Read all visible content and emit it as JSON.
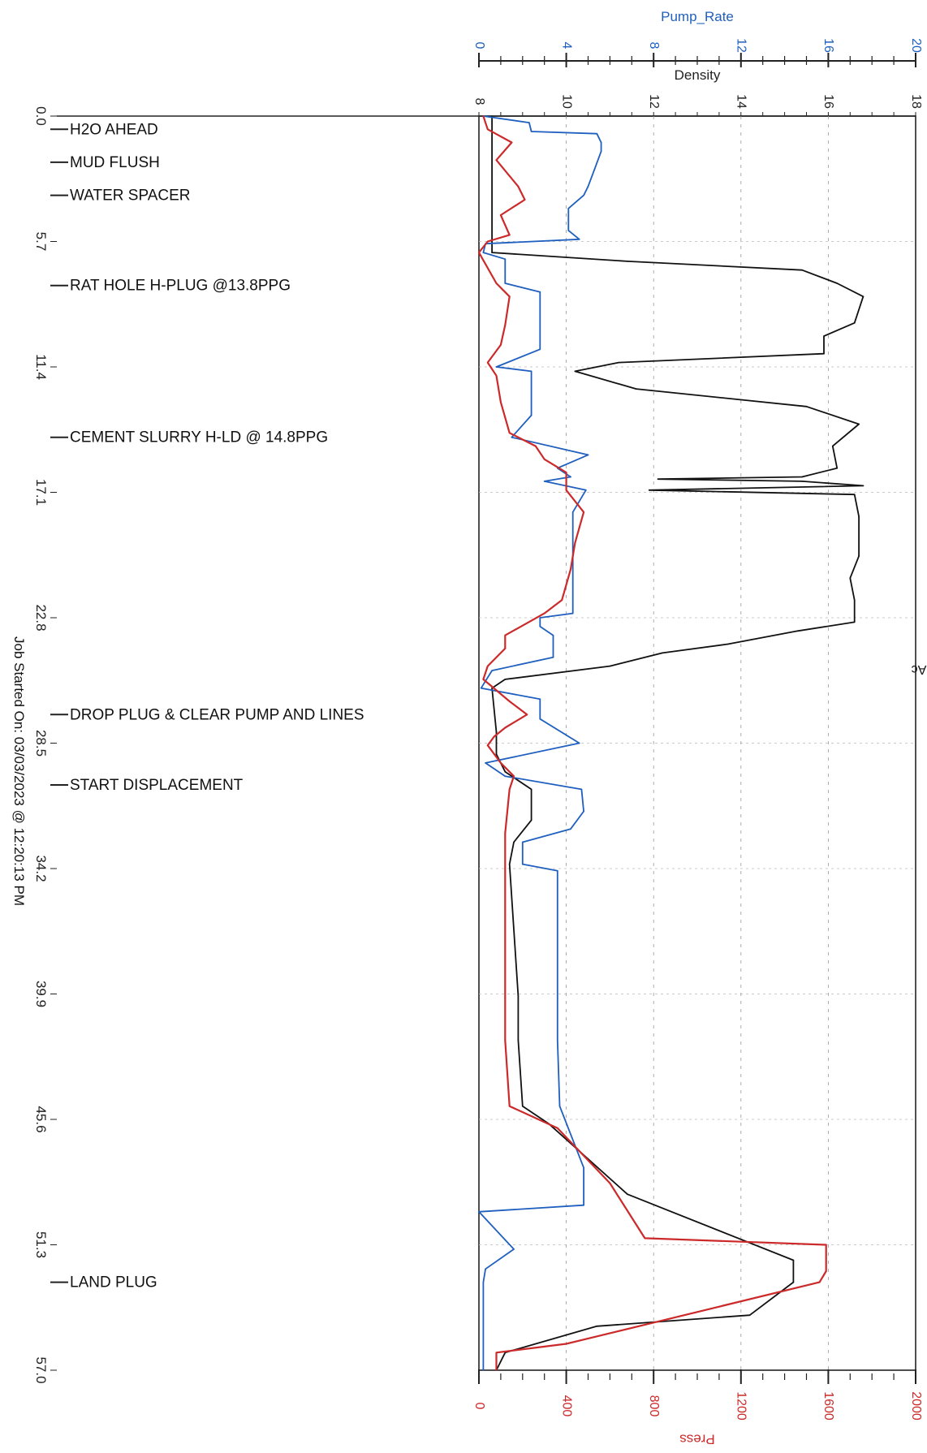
{
  "chart_data": {
    "type": "line",
    "orientation": "rotated-90",
    "x_axis": {
      "label": "",
      "ticks": [
        "0.0",
        "5.7",
        "11.4",
        "17.1",
        "22.8",
        "28.5",
        "34.2",
        "39.9",
        "45.6",
        "51.3",
        "57.0"
      ],
      "range": [
        0,
        57
      ]
    },
    "top_axes": [
      {
        "label": "Pump_Rate",
        "ticks": [
          "0",
          "4",
          "8",
          "12",
          "16",
          "20"
        ],
        "range": [
          0,
          20
        ],
        "color": "#1f5fbf"
      },
      {
        "label": "Density",
        "ticks": [
          "8",
          "10",
          "12",
          "14",
          "16",
          "18"
        ],
        "range": [
          8,
          18
        ],
        "color": "#222222"
      }
    ],
    "bottom_axis": {
      "label": "Press",
      "ticks": [
        "0",
        "400",
        "800",
        "1200",
        "1600",
        "2000"
      ],
      "range": [
        0,
        2000
      ],
      "color": "#cc2a2a"
    },
    "annotations": [
      {
        "time": 0.6,
        "text": "H2O AHEAD"
      },
      {
        "time": 2.1,
        "text": "MUD FLUSH"
      },
      {
        "time": 3.6,
        "text": "WATER SPACER"
      },
      {
        "time": 7.7,
        "text": "RAT HOLE H-PLUG @13.8PPG"
      },
      {
        "time": 14.6,
        "text": "CEMENT SLURRY H-LD @ 14.8PPG"
      },
      {
        "time": 27.2,
        "text": "DROP PLUG & CLEAR PUMP AND LINES"
      },
      {
        "time": 30.4,
        "text": "START DISPLACEMENT"
      },
      {
        "time": 53.0,
        "text": "LAND PLUG"
      }
    ],
    "footer": "Job Started On: 03/03/2023 @ 12:20:13 PM",
    "corner_text": "Ac",
    "series": [
      {
        "name": "Density",
        "color": "#111111",
        "axis": "Density",
        "points": [
          [
            0,
            8.3
          ],
          [
            5.6,
            8.3
          ],
          [
            6.2,
            8.3
          ],
          [
            6.6,
            11.4
          ],
          [
            7.0,
            15.4
          ],
          [
            7.6,
            16.2
          ],
          [
            8.2,
            16.8
          ],
          [
            9.4,
            16.6
          ],
          [
            10.0,
            15.9
          ],
          [
            10.8,
            15.9
          ],
          [
            11.2,
            11.2
          ],
          [
            11.6,
            10.2
          ],
          [
            12.4,
            11.6
          ],
          [
            13.2,
            15.5
          ],
          [
            14.0,
            16.7
          ],
          [
            15.0,
            16.1
          ],
          [
            16.0,
            16.2
          ],
          [
            16.4,
            15.4
          ],
          [
            16.5,
            12.1
          ],
          [
            16.6,
            15.4
          ],
          [
            16.8,
            16.8
          ],
          [
            17.0,
            11.9
          ],
          [
            17.2,
            16.6
          ],
          [
            18.2,
            16.7
          ],
          [
            20.0,
            16.7
          ],
          [
            21.0,
            16.5
          ],
          [
            22.0,
            16.6
          ],
          [
            23.0,
            16.6
          ],
          [
            23.4,
            15.3
          ],
          [
            24.0,
            13.7
          ],
          [
            24.4,
            12.2
          ],
          [
            25.0,
            11.0
          ],
          [
            25.6,
            8.6
          ],
          [
            26.0,
            8.3
          ],
          [
            28.0,
            8.4
          ],
          [
            29.0,
            8.4
          ],
          [
            29.8,
            8.6
          ],
          [
            30.6,
            9.2
          ],
          [
            32.0,
            9.2
          ],
          [
            33.0,
            8.8
          ],
          [
            34.0,
            8.7
          ],
          [
            40.0,
            8.9
          ],
          [
            42.0,
            8.9
          ],
          [
            45.0,
            9.0
          ],
          [
            45.8,
            9.6
          ],
          [
            49.0,
            11.4
          ],
          [
            52.0,
            15.2
          ],
          [
            53.0,
            15.2
          ],
          [
            54.5,
            14.2
          ],
          [
            55.0,
            10.7
          ],
          [
            56.2,
            8.6
          ],
          [
            57,
            8.4
          ]
        ]
      },
      {
        "name": "Pump_Rate",
        "color": "#1f5fbf",
        "axis": "Pump_Rate",
        "points": [
          [
            0,
            0.2
          ],
          [
            0.3,
            2.3
          ],
          [
            0.7,
            2.4
          ],
          [
            0.8,
            5.4
          ],
          [
            1.2,
            5.6
          ],
          [
            1.6,
            5.6
          ],
          [
            2.4,
            5.3
          ],
          [
            3.2,
            5.0
          ],
          [
            3.6,
            4.8
          ],
          [
            4.2,
            4.1
          ],
          [
            5.2,
            4.1
          ],
          [
            5.6,
            4.6
          ],
          [
            5.8,
            0.3
          ],
          [
            6.2,
            0.2
          ],
          [
            6.5,
            1.2
          ],
          [
            7.6,
            1.2
          ],
          [
            8.0,
            2.8
          ],
          [
            10.6,
            2.8
          ],
          [
            11.4,
            0.8
          ],
          [
            11.6,
            2.4
          ],
          [
            12.8,
            2.4
          ],
          [
            13.6,
            2.4
          ],
          [
            14.6,
            1.5
          ],
          [
            15.4,
            5.0
          ],
          [
            16.0,
            3.6
          ],
          [
            16.4,
            4.2
          ],
          [
            16.6,
            3.0
          ],
          [
            17.0,
            4.9
          ],
          [
            18.0,
            4.3
          ],
          [
            22.6,
            4.3
          ],
          [
            22.8,
            2.8
          ],
          [
            23.2,
            2.8
          ],
          [
            23.6,
            3.4
          ],
          [
            24.6,
            3.4
          ],
          [
            25.2,
            0.6
          ],
          [
            26.0,
            0.1
          ],
          [
            26.5,
            2.8
          ],
          [
            27.4,
            2.8
          ],
          [
            28.5,
            4.6
          ],
          [
            29.4,
            0.3
          ],
          [
            30.0,
            1.2
          ],
          [
            30.6,
            4.7
          ],
          [
            31.6,
            4.8
          ],
          [
            32.4,
            4.2
          ],
          [
            33.0,
            2.0
          ],
          [
            34.0,
            2.0
          ],
          [
            34.3,
            3.6
          ],
          [
            42.0,
            3.6
          ],
          [
            45.0,
            3.7
          ],
          [
            47.8,
            4.8
          ],
          [
            49.5,
            4.8
          ],
          [
            49.8,
            0.0
          ],
          [
            51.5,
            1.6
          ],
          [
            52.4,
            0.3
          ],
          [
            53.0,
            0.2
          ],
          [
            57,
            0.2
          ]
        ]
      },
      {
        "name": "Press",
        "color": "#cc2a2a",
        "axis": "Press",
        "points": [
          [
            0,
            20
          ],
          [
            0.6,
            40
          ],
          [
            1.2,
            150
          ],
          [
            2.0,
            80
          ],
          [
            3.2,
            180
          ],
          [
            3.8,
            210
          ],
          [
            4.5,
            100
          ],
          [
            5.4,
            140
          ],
          [
            5.7,
            40
          ],
          [
            6.2,
            0
          ],
          [
            7.6,
            80
          ],
          [
            8.2,
            140
          ],
          [
            9.5,
            120
          ],
          [
            10.4,
            100
          ],
          [
            11.2,
            40
          ],
          [
            11.8,
            80
          ],
          [
            13.0,
            100
          ],
          [
            14.4,
            140
          ],
          [
            15.0,
            260
          ],
          [
            15.6,
            300
          ],
          [
            16.2,
            400
          ],
          [
            17.0,
            400
          ],
          [
            18.0,
            480
          ],
          [
            19.4,
            440
          ],
          [
            20.6,
            420
          ],
          [
            22.0,
            380
          ],
          [
            22.6,
            300
          ],
          [
            23.6,
            120
          ],
          [
            24.2,
            120
          ],
          [
            25.0,
            40
          ],
          [
            25.6,
            20
          ],
          [
            26.6,
            140
          ],
          [
            27.2,
            220
          ],
          [
            27.8,
            120
          ],
          [
            28.2,
            70
          ],
          [
            28.6,
            40
          ],
          [
            29.4,
            100
          ],
          [
            30.0,
            160
          ],
          [
            30.6,
            140
          ],
          [
            31.6,
            130
          ],
          [
            32.6,
            120
          ],
          [
            33.8,
            120
          ],
          [
            36.0,
            120
          ],
          [
            42.0,
            120
          ],
          [
            45.0,
            140
          ],
          [
            46.0,
            360
          ],
          [
            48.5,
            600
          ],
          [
            51.0,
            760
          ],
          [
            51.3,
            1590
          ],
          [
            52.5,
            1590
          ],
          [
            53.0,
            1560
          ],
          [
            55.8,
            400
          ],
          [
            56.2,
            80
          ],
          [
            57,
            80
          ]
        ]
      }
    ]
  }
}
